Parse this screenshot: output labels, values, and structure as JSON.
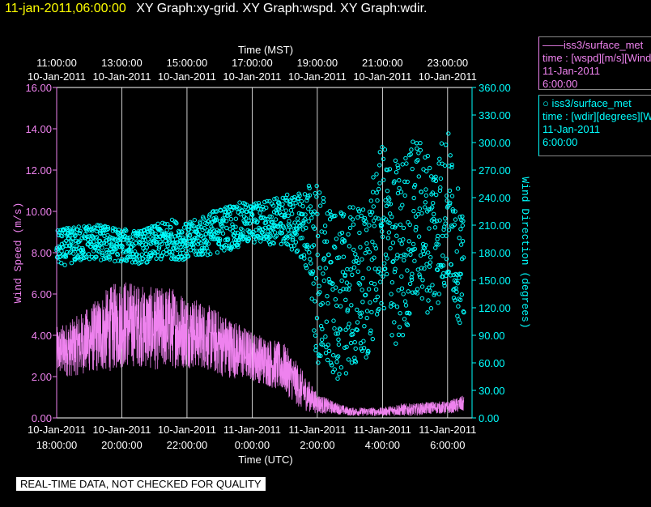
{
  "header": {
    "timestamp": "11-jan-2011,06:00:00",
    "graph_titles": "XY Graph:xy-grid.  XY Graph:wspd.  XY Graph:wdir."
  },
  "legend": {
    "wspd": {
      "line1": "——iss3/surface_met",
      "line2": "time : [wspd][m/s][Wind",
      "line3": "11-Jan-2011",
      "line4": "6:00:00"
    },
    "wdir": {
      "line1": "○  iss3/surface_met",
      "line2": "time : [wdir][degrees][Wind",
      "line3": "11-Jan-2011",
      "line4": "6:00:00"
    }
  },
  "quality_note": "REAL-TIME DATA, NOT CHECKED FOR QUALITY",
  "colors": {
    "wspd": "#ee82ee",
    "wdir": "#00ffff",
    "grid": "#ffffff"
  },
  "chart_data": {
    "type": "line",
    "xlabel_bottom": "Time (UTC)",
    "xlabel_top": "Time (MST)",
    "ylabel_left": "Wind Speed (m/s)",
    "ylabel_right": "Wind Direction (degrees)",
    "ylim_left": [
      0,
      16
    ],
    "ylim_right": [
      0,
      360
    ],
    "xlim_hours_utc": [
      18,
      30.75
    ],
    "grid": true,
    "bottom_ticks": [
      {
        "h": 18,
        "date": "10-Jan-2011",
        "time": "18:00:00"
      },
      {
        "h": 20,
        "date": "10-Jan-2011",
        "time": "20:00:00"
      },
      {
        "h": 22,
        "date": "10-Jan-2011",
        "time": "22:00:00"
      },
      {
        "h": 24,
        "date": "11-Jan-2011",
        "time": "0:00:00"
      },
      {
        "h": 26,
        "date": "11-Jan-2011",
        "time": "2:00:00"
      },
      {
        "h": 28,
        "date": "11-Jan-2011",
        "time": "4:00:00"
      },
      {
        "h": 30,
        "date": "11-Jan-2011",
        "time": "6:00:00"
      }
    ],
    "top_ticks": [
      {
        "h": 18,
        "time": "11:00:00",
        "date": "10-Jan-2011"
      },
      {
        "h": 20,
        "time": "13:00:00",
        "date": "10-Jan-2011"
      },
      {
        "h": 22,
        "time": "15:00:00",
        "date": "10-Jan-2011"
      },
      {
        "h": 24,
        "time": "17:00:00",
        "date": "10-Jan-2011"
      },
      {
        "h": 26,
        "time": "19:00:00",
        "date": "10-Jan-2011"
      },
      {
        "h": 28,
        "time": "21:00:00",
        "date": "10-Jan-2011"
      },
      {
        "h": 30,
        "time": "23:00:00",
        "date": "10-Jan-2011"
      }
    ],
    "left_ticks": [
      "0.00",
      "2.00",
      "4.00",
      "6.00",
      "8.00",
      "10.00",
      "12.00",
      "14.00",
      "16.00"
    ],
    "right_ticks": [
      "0.00",
      "30.00",
      "60.00",
      "90.00",
      "120.00",
      "150.00",
      "180.00",
      "210.00",
      "240.00",
      "270.00",
      "300.00",
      "330.00",
      "360.00"
    ],
    "series": [
      {
        "name": "iss3/surface_met wspd",
        "axis": "left",
        "x": [
          18.0,
          18.5,
          19.0,
          19.5,
          20.0,
          20.5,
          21.0,
          21.5,
          22.0,
          22.5,
          23.0,
          23.5,
          24.0,
          24.5,
          25.0,
          25.5,
          26.0,
          26.5,
          27.0,
          27.5,
          28.0,
          28.5,
          29.0,
          29.5,
          30.0,
          30.5
        ],
        "y": [
          3.2,
          3.4,
          3.8,
          4.2,
          4.6,
          4.5,
          4.3,
          4.4,
          4.2,
          4.0,
          3.6,
          3.3,
          3.0,
          2.7,
          2.4,
          1.4,
          0.7,
          0.5,
          0.3,
          0.3,
          0.3,
          0.4,
          0.4,
          0.5,
          0.5,
          0.7
        ],
        "spread": [
          1.2,
          1.4,
          1.6,
          2.0,
          2.2,
          2.0,
          2.0,
          2.0,
          1.8,
          1.6,
          1.6,
          1.4,
          1.2,
          1.2,
          1.2,
          1.0,
          0.5,
          0.3,
          0.2,
          0.2,
          0.2,
          0.3,
          0.3,
          0.3,
          0.3,
          0.4
        ]
      },
      {
        "name": "iss3/surface_met wdir",
        "axis": "right",
        "x": [
          18.0,
          18.5,
          19.0,
          19.5,
          20.0,
          20.5,
          21.0,
          21.5,
          22.0,
          22.5,
          23.0,
          23.5,
          24.0,
          24.5,
          25.0,
          25.5,
          25.8,
          26.0,
          26.5,
          27.0,
          27.5,
          28.0,
          28.5,
          29.0,
          29.5,
          30.0,
          30.5
        ],
        "y": [
          185,
          188,
          192,
          190,
          188,
          186,
          190,
          195,
          192,
          198,
          205,
          210,
          212,
          214,
          215,
          210,
          200,
          150,
          130,
          140,
          145,
          210,
          170,
          220,
          200,
          230,
          150
        ],
        "spread": [
          20,
          20,
          20,
          20,
          18,
          18,
          20,
          22,
          20,
          22,
          25,
          25,
          22,
          25,
          28,
          35,
          60,
          110,
          90,
          90,
          90,
          90,
          110,
          90,
          90,
          90,
          60
        ]
      }
    ]
  }
}
